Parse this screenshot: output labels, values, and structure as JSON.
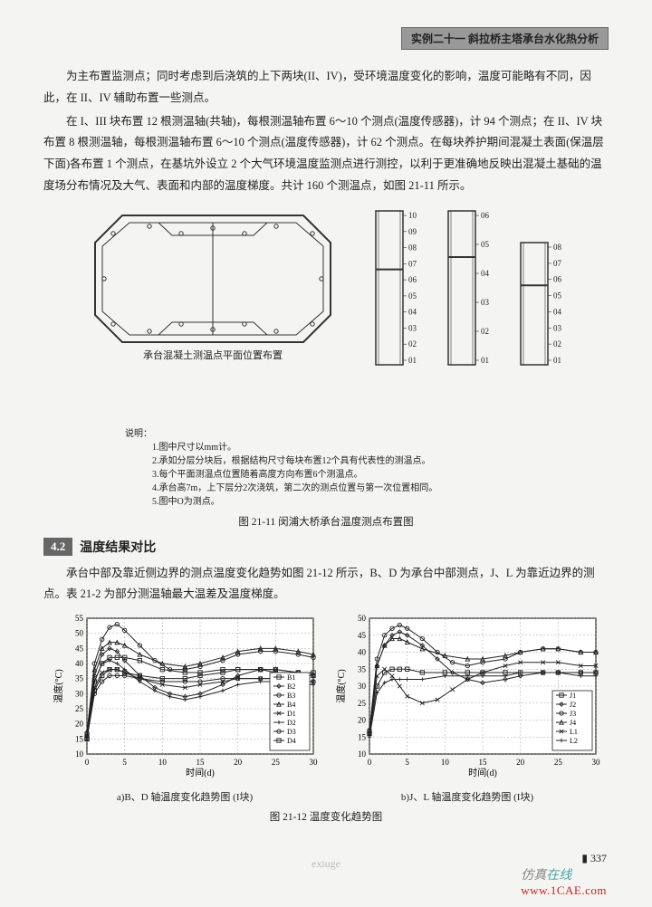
{
  "header": {
    "banner": "实例二十一  斜拉桥主塔承台水化热分析"
  },
  "paragraphs": {
    "p1": "为主布置监测点；同时考虑到后浇筑的上下两块(II、IV)，受环境温度变化的影响，温度可能略有不同，因此，在 II、IV 辅助布置一些测点。",
    "p2": "在 I、III 块布置 12 根测温轴(共轴)，每根测温轴布置 6～10 个测点(温度传感器)，计 94 个测点；在 II、IV 块布置 8 根测温轴，每根测温轴布置 6～10 个测点(温度传感器)，计 62 个测点。在每块养护期间混凝土表面(保温层下面)各布置 1 个测点，在基坑外设立 2 个大气环境温度监测点进行测控，以利于更准确地反映出混凝土基础的温度场分布情况及大气、表面和内部的温度梯度。共计 160 个测温点，如图 21-11 所示。",
    "p3": "承台中部及靠近侧边界的测点温度变化趋势如图 21-12 所示，B、D 为承台中部测点，J、L 为靠近边界的测点。表 21-2 为部分测温轴最大温差及温度梯度。"
  },
  "fig2111": {
    "plan_caption": "承台混凝土测温点平面位置布置",
    "notes_label": "说明：",
    "notes": [
      "1.图中尺寸以mm计。",
      "2.承如分层分块后，根据结构尺寸每块布置12个具有代表性的测温点。",
      "3.每个平面测温点位置随着高度方向布置6个测温点。",
      "4.承台高7m，上下层分2次浇筑，第二次的测点位置与第一次位置相同。",
      "5.图中O为测点。"
    ],
    "caption": "图 21-11  闵浦大桥承台温度测点布置图",
    "col1_top": [
      "10",
      "09",
      "08",
      "07"
    ],
    "col1_bottom": [
      "06",
      "05",
      "04",
      "03",
      "02",
      "01"
    ],
    "col2_top": [
      "06",
      "05"
    ],
    "col2_bottom": [
      "04",
      "03",
      "02",
      "01"
    ],
    "col3_top": [
      "08",
      "07",
      "06"
    ],
    "col3_bottom": [
      "05",
      "04",
      "03",
      "02",
      "01"
    ],
    "stroke": "#333333"
  },
  "section": {
    "num": "4.2",
    "title": "温度结果对比"
  },
  "charts": {
    "ylabel": "温度(°C)",
    "xlabel": "时间(d)",
    "caption": "图 21-12  温度变化趋势图",
    "a": {
      "sub": "a)B、D 轴温度变化趋势图 (I块)",
      "ylim": [
        10,
        55
      ],
      "ytick": [
        10,
        15,
        20,
        25,
        30,
        35,
        40,
        45,
        50,
        55
      ],
      "xlim": [
        0,
        30
      ],
      "xtick": [
        0,
        5,
        10,
        15,
        20,
        25,
        30
      ],
      "legend": [
        "B1",
        "B2",
        "B3",
        "B4",
        "D1",
        "D2",
        "D3",
        "D4"
      ],
      "series": [
        [
          [
            0,
            15
          ],
          [
            1,
            34
          ],
          [
            2,
            40
          ],
          [
            3,
            42
          ],
          [
            4,
            42
          ],
          [
            5,
            42
          ],
          [
            7,
            41
          ],
          [
            10,
            38
          ],
          [
            13,
            37
          ],
          [
            15,
            37
          ],
          [
            18,
            38
          ],
          [
            20,
            38
          ],
          [
            23,
            38
          ],
          [
            25,
            37
          ],
          [
            28,
            37
          ],
          [
            30,
            36
          ]
        ],
        [
          [
            0,
            16
          ],
          [
            1,
            36
          ],
          [
            2,
            43
          ],
          [
            3,
            45
          ],
          [
            4,
            44
          ],
          [
            5,
            41
          ],
          [
            7,
            36
          ],
          [
            9,
            32
          ],
          [
            11,
            30
          ],
          [
            13,
            29
          ],
          [
            15,
            30
          ],
          [
            18,
            33
          ],
          [
            20,
            36
          ],
          [
            23,
            38
          ],
          [
            25,
            38
          ],
          [
            28,
            37
          ],
          [
            30,
            36
          ]
        ],
        [
          [
            0,
            17
          ],
          [
            1,
            40
          ],
          [
            2,
            48
          ],
          [
            3,
            52
          ],
          [
            4,
            53
          ],
          [
            5,
            51
          ],
          [
            7,
            46
          ],
          [
            9,
            41
          ],
          [
            11,
            38
          ],
          [
            13,
            38
          ],
          [
            15,
            39
          ],
          [
            18,
            41
          ],
          [
            20,
            43
          ],
          [
            23,
            44
          ],
          [
            25,
            44
          ],
          [
            28,
            43
          ],
          [
            30,
            42
          ]
        ],
        [
          [
            0,
            17
          ],
          [
            1,
            38
          ],
          [
            2,
            45
          ],
          [
            3,
            47
          ],
          [
            4,
            47
          ],
          [
            5,
            46
          ],
          [
            7,
            43
          ],
          [
            10,
            40
          ],
          [
            13,
            39
          ],
          [
            15,
            40
          ],
          [
            18,
            42
          ],
          [
            20,
            44
          ],
          [
            23,
            45
          ],
          [
            25,
            45
          ],
          [
            28,
            44
          ],
          [
            30,
            43
          ]
        ],
        [
          [
            0,
            15
          ],
          [
            1,
            32
          ],
          [
            2,
            37
          ],
          [
            3,
            38
          ],
          [
            4,
            38
          ],
          [
            5,
            37
          ],
          [
            7,
            35
          ],
          [
            10,
            33
          ],
          [
            13,
            32
          ],
          [
            15,
            33
          ],
          [
            18,
            34
          ],
          [
            20,
            35
          ],
          [
            23,
            35
          ],
          [
            25,
            35
          ],
          [
            28,
            34
          ],
          [
            30,
            34
          ]
        ],
        [
          [
            0,
            16
          ],
          [
            1,
            34
          ],
          [
            2,
            40
          ],
          [
            3,
            41
          ],
          [
            4,
            40
          ],
          [
            5,
            38
          ],
          [
            7,
            34
          ],
          [
            9,
            31
          ],
          [
            11,
            29
          ],
          [
            13,
            28
          ],
          [
            15,
            29
          ],
          [
            18,
            31
          ],
          [
            20,
            33
          ],
          [
            23,
            34
          ],
          [
            25,
            34
          ],
          [
            28,
            33
          ],
          [
            30,
            33
          ]
        ],
        [
          [
            0,
            15
          ],
          [
            1,
            30
          ],
          [
            2,
            34
          ],
          [
            3,
            36
          ],
          [
            4,
            36
          ],
          [
            5,
            36
          ],
          [
            7,
            35
          ],
          [
            10,
            34
          ],
          [
            13,
            34
          ],
          [
            15,
            34
          ],
          [
            18,
            35
          ],
          [
            20,
            35
          ],
          [
            23,
            35
          ],
          [
            25,
            35
          ],
          [
            28,
            34
          ],
          [
            30,
            34
          ]
        ],
        [
          [
            0,
            15
          ],
          [
            1,
            31
          ],
          [
            2,
            36
          ],
          [
            3,
            38
          ],
          [
            4,
            38
          ],
          [
            5,
            37
          ],
          [
            7,
            36
          ],
          [
            10,
            35
          ],
          [
            13,
            35
          ],
          [
            15,
            36
          ],
          [
            18,
            37
          ],
          [
            20,
            38
          ],
          [
            23,
            38
          ],
          [
            25,
            38
          ],
          [
            28,
            37
          ],
          [
            30,
            37
          ]
        ]
      ],
      "markers": [
        "square",
        "diamond",
        "circle",
        "triangle",
        "cross",
        "plus",
        "circle",
        "square"
      ]
    },
    "b": {
      "sub": "b)J、L 轴温度变化趋势图 (I块)",
      "ylim": [
        10,
        50
      ],
      "ytick": [
        10,
        15,
        20,
        25,
        30,
        35,
        40,
        45,
        50
      ],
      "xlim": [
        0,
        30
      ],
      "xtick": [
        0,
        5,
        10,
        15,
        20,
        25,
        30
      ],
      "legend": [
        "J1",
        "J2",
        "J3",
        "J4",
        "L1",
        "L2"
      ],
      "series": [
        [
          [
            0,
            16
          ],
          [
            1,
            30
          ],
          [
            2,
            34
          ],
          [
            3,
            35
          ],
          [
            4,
            35
          ],
          [
            5,
            35
          ],
          [
            7,
            34
          ],
          [
            10,
            34
          ],
          [
            13,
            34
          ],
          [
            15,
            34
          ],
          [
            18,
            34
          ],
          [
            20,
            34
          ],
          [
            23,
            34
          ],
          [
            25,
            34
          ],
          [
            28,
            34
          ],
          [
            30,
            34
          ]
        ],
        [
          [
            0,
            16
          ],
          [
            1,
            36
          ],
          [
            2,
            42
          ],
          [
            3,
            45
          ],
          [
            4,
            46
          ],
          [
            5,
            45
          ],
          [
            7,
            42
          ],
          [
            9,
            38
          ],
          [
            11,
            34
          ],
          [
            13,
            32
          ],
          [
            15,
            31
          ],
          [
            18,
            32
          ],
          [
            20,
            33
          ],
          [
            23,
            34
          ],
          [
            25,
            34
          ],
          [
            28,
            34
          ],
          [
            30,
            34
          ]
        ],
        [
          [
            0,
            17
          ],
          [
            1,
            38
          ],
          [
            2,
            45
          ],
          [
            3,
            47
          ],
          [
            4,
            48
          ],
          [
            5,
            47
          ],
          [
            7,
            44
          ],
          [
            9,
            40
          ],
          [
            11,
            37
          ],
          [
            13,
            36
          ],
          [
            15,
            37
          ],
          [
            18,
            38
          ],
          [
            20,
            40
          ],
          [
            23,
            41
          ],
          [
            25,
            41
          ],
          [
            28,
            40
          ],
          [
            30,
            40
          ]
        ],
        [
          [
            0,
            17
          ],
          [
            1,
            36
          ],
          [
            2,
            42
          ],
          [
            3,
            44
          ],
          [
            4,
            44
          ],
          [
            5,
            43
          ],
          [
            7,
            41
          ],
          [
            10,
            39
          ],
          [
            13,
            38
          ],
          [
            15,
            38
          ],
          [
            18,
            39
          ],
          [
            20,
            40
          ],
          [
            23,
            41
          ],
          [
            25,
            41
          ],
          [
            28,
            40
          ],
          [
            30,
            40
          ]
        ],
        [
          [
            0,
            16
          ],
          [
            1,
            33
          ],
          [
            2,
            35
          ],
          [
            3,
            33
          ],
          [
            4,
            30
          ],
          [
            5,
            27
          ],
          [
            7,
            25
          ],
          [
            9,
            26
          ],
          [
            11,
            29
          ],
          [
            13,
            32
          ],
          [
            15,
            34
          ],
          [
            18,
            36
          ],
          [
            20,
            37
          ],
          [
            23,
            37
          ],
          [
            25,
            37
          ],
          [
            28,
            36
          ],
          [
            30,
            36
          ]
        ],
        [
          [
            0,
            15
          ],
          [
            1,
            28
          ],
          [
            2,
            31
          ],
          [
            3,
            32
          ],
          [
            4,
            32
          ],
          [
            5,
            32
          ],
          [
            7,
            32
          ],
          [
            10,
            33
          ],
          [
            13,
            33
          ],
          [
            15,
            33
          ],
          [
            18,
            33
          ],
          [
            20,
            34
          ],
          [
            23,
            34
          ],
          [
            25,
            34
          ],
          [
            28,
            33
          ],
          [
            30,
            33
          ]
        ]
      ],
      "markers": [
        "square",
        "diamond",
        "circle",
        "triangle",
        "cross",
        "plus"
      ]
    },
    "colors": {
      "line": "#222222",
      "grid": "#888888",
      "bg": "#ffffff"
    }
  },
  "footer": {
    "page": "337",
    "brand1_a": "仿真",
    "brand1_b": "在线",
    "brand2": "www.1CAE.com",
    "wm": "exiuge"
  }
}
